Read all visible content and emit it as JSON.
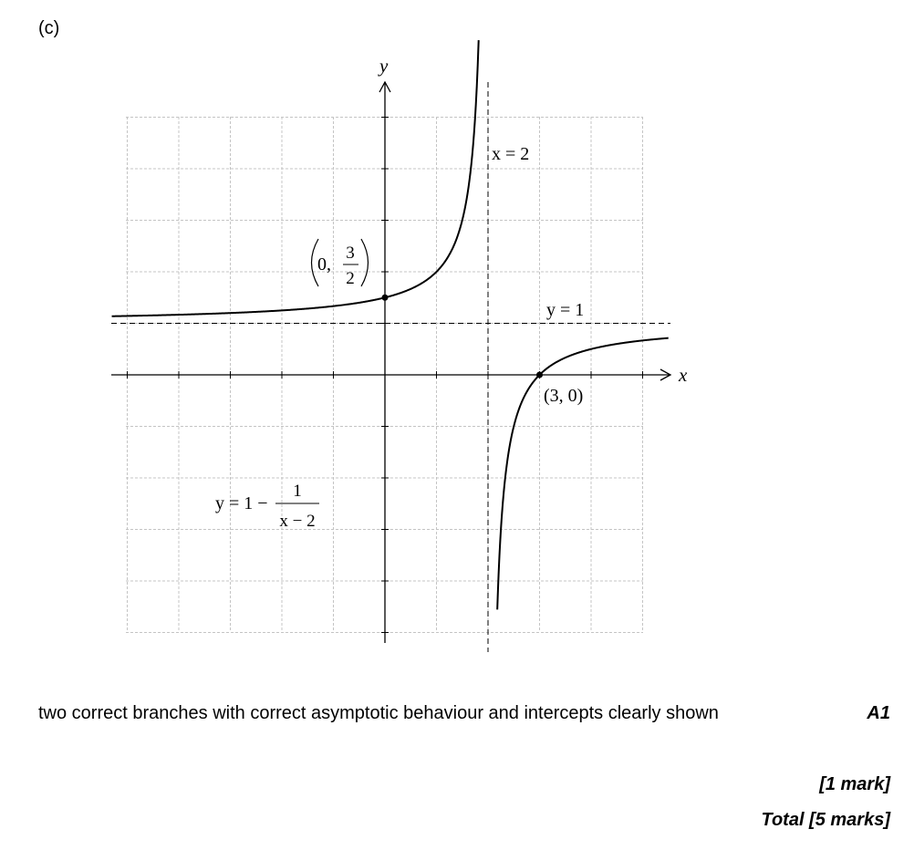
{
  "part_label": "(c)",
  "criterion": "two correct branches with correct asymptotic behaviour and intercepts clearly shown",
  "mark_code": "A1",
  "mark_line": "[1 mark]",
  "total_line": "Total [5 marks]",
  "chart_data": {
    "type": "line",
    "xlabel": "x",
    "ylabel": "y",
    "xlim": [
      -5,
      5
    ],
    "ylim": [
      -5,
      5
    ],
    "grid": true,
    "function": "y = 1 - 1/(x - 2)",
    "vertical_asymptote": {
      "x": 2,
      "label": "x = 2"
    },
    "horizontal_asymptote": {
      "y": 1,
      "label": "y = 1"
    },
    "points": [
      {
        "x": 0,
        "y": 1.5,
        "label_lead": "0,",
        "label_num": "3",
        "label_den": "2"
      },
      {
        "x": 3,
        "y": 0,
        "label": "(3, 0)"
      }
    ],
    "curve_label": {
      "lhs": "y = 1 −",
      "num": "1",
      "den": "x − 2"
    }
  }
}
